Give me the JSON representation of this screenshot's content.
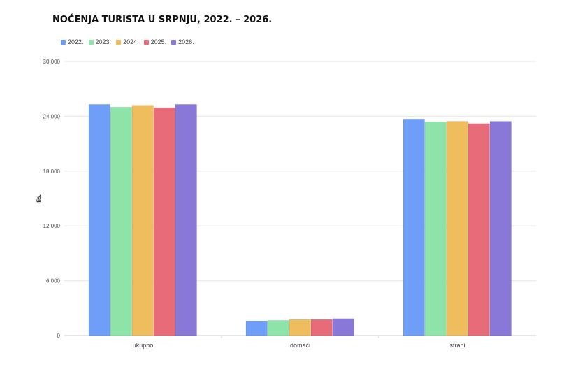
{
  "chart_data": {
    "type": "bar",
    "title": "NOĆENJA TURISTA U SRPNJU, 2022. – 2026.",
    "ylabel": "tis.",
    "xlabel": "",
    "categories": [
      "ukupno",
      "domaći",
      "strani"
    ],
    "series": [
      {
        "name": "2022.",
        "color": "#6f9ef8",
        "values": [
          25300,
          1600,
          23700
        ]
      },
      {
        "name": "2023.",
        "color": "#8de3a8",
        "values": [
          25000,
          1650,
          23400
        ]
      },
      {
        "name": "2024.",
        "color": "#efbd5e",
        "values": [
          25200,
          1750,
          23450
        ]
      },
      {
        "name": "2025.",
        "color": "#e86b7a",
        "values": [
          24950,
          1750,
          23200
        ]
      },
      {
        "name": "2026.",
        "color": "#8978d8",
        "values": [
          25300,
          1850,
          23450
        ]
      }
    ],
    "ylim": [
      0,
      30000
    ],
    "yticks": [
      {
        "value": 0,
        "label": "0"
      },
      {
        "value": 6000,
        "label": "6 000"
      },
      {
        "value": 12000,
        "label": "12 000"
      },
      {
        "value": 18000,
        "label": "18 000"
      },
      {
        "value": 24000,
        "label": "24 000"
      },
      {
        "value": 30000,
        "label": "30 000"
      }
    ],
    "grid": true,
    "legend": "top-left"
  }
}
